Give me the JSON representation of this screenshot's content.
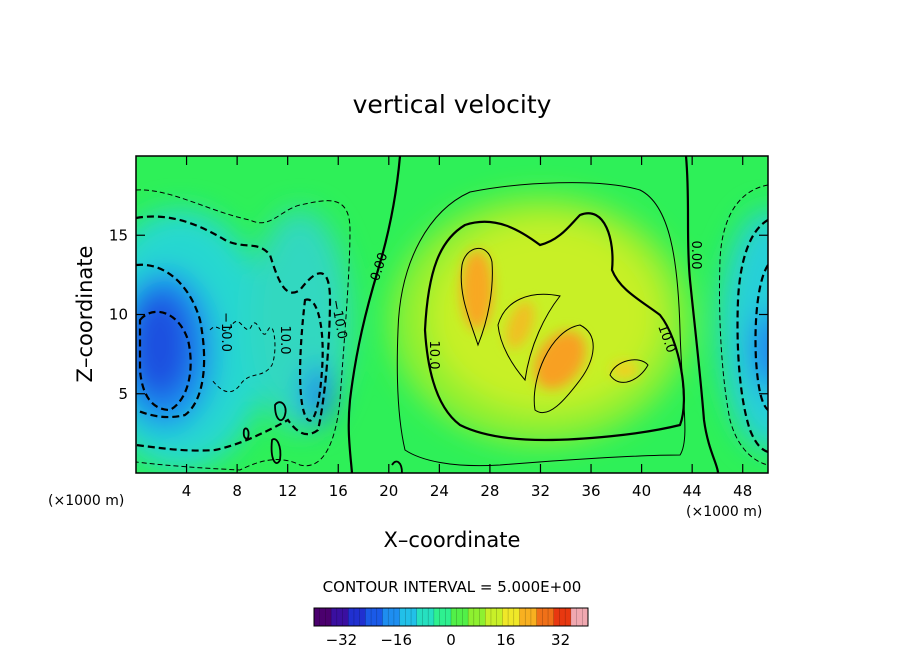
{
  "chart_data": {
    "type": "heatmap",
    "title": "vertical velocity",
    "xlabel": "X–coordinate",
    "ylabel": "Z–coordinate",
    "x_unit": "(×1000 m)",
    "y_unit": "(×1000 m)",
    "xlim": [
      0,
      50
    ],
    "ylim": [
      0,
      20
    ],
    "x_ticks": [
      4,
      8,
      12,
      16,
      20,
      24,
      28,
      32,
      36,
      40,
      44,
      48
    ],
    "y_ticks": [
      5,
      10,
      15
    ],
    "contour_interval_text": "CONTOUR INTERVAL = 5.000E+00",
    "contour_interval": 5,
    "colorbar": {
      "min": -40,
      "max": 40,
      "ticks": [
        -32,
        -16,
        0,
        16,
        32
      ],
      "colors": [
        "#4b006e",
        "#3a0fa0",
        "#2030d0",
        "#1a5ae8",
        "#1e8ef0",
        "#22c0e8",
        "#26e0c0",
        "#2ef090",
        "#52f048",
        "#8ef030",
        "#c8f028",
        "#f0e828",
        "#f8b020",
        "#f07018",
        "#e83810",
        "#f0a8b0"
      ]
    },
    "contour_labels": [
      "0.00",
      "0.00",
      "10.0",
      "−10.0",
      "−10.0",
      "10.0",
      "10.0"
    ],
    "features": [
      {
        "name": "updraft-core-1",
        "x": 26.5,
        "z": 11,
        "w": 20
      },
      {
        "name": "updraft-core-2",
        "x": 33,
        "z": 7.5,
        "w": 20
      },
      {
        "name": "updraft-core-3",
        "x": 30,
        "z": 9,
        "w": 15
      },
      {
        "name": "updraft-core-4",
        "x": 38.5,
        "z": 6.5,
        "w": 14
      },
      {
        "name": "updraft-broad",
        "x": 31.5,
        "z": 9,
        "w": 8
      },
      {
        "name": "downdraft-left",
        "x": 2,
        "z": 7.5,
        "w": -20
      },
      {
        "name": "downdraft-left-mid",
        "x": 13.5,
        "z": 5,
        "w": -12
      },
      {
        "name": "downdraft-right",
        "x": 50,
        "z": 7,
        "w": -16
      }
    ]
  }
}
